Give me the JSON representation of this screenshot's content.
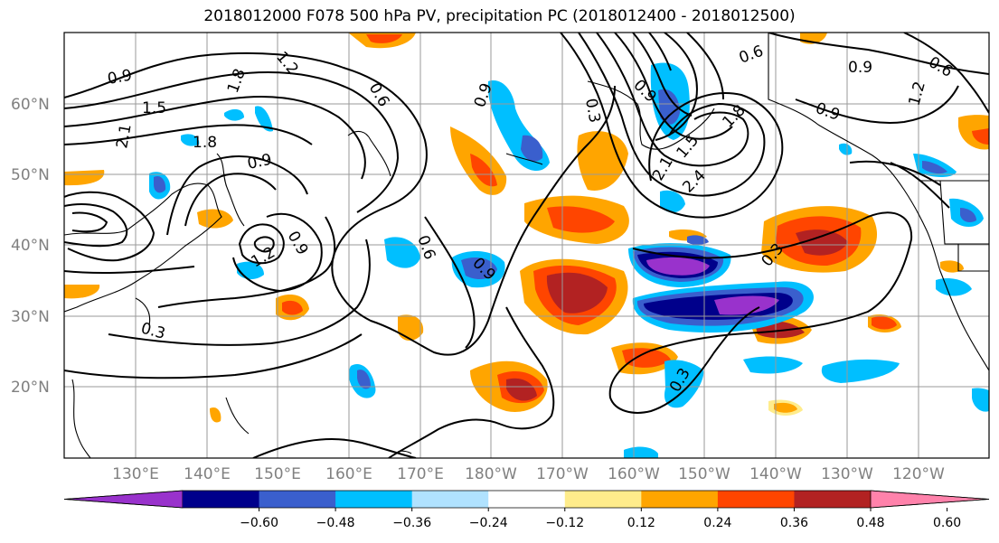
{
  "title": "2018012000 F078 500 hPa PV, precipitation PC (2018012400 - 2018012500)",
  "lat_labels": [
    "60°N",
    "50°N",
    "40°N",
    "30°N",
    "20°N"
  ],
  "lon_labels": [
    "130°E",
    "140°E",
    "150°E",
    "160°E",
    "170°E",
    "180°W",
    "170°W",
    "160°W",
    "150°W",
    "140°W",
    "130°W",
    "120°W"
  ],
  "colorbar": {
    "ticks": [
      "−0.60",
      "−0.48",
      "−0.36",
      "−0.24",
      "−0.12",
      "0.12",
      "0.24",
      "0.36",
      "0.48",
      "0.60"
    ],
    "colors": [
      "#9932CC",
      "#00008B",
      "#3A5FCD",
      "#00BFFF",
      "#B0E2FF",
      "#FFFFFF",
      "#FFEC8B",
      "#FFA500",
      "#FF4500",
      "#B22222",
      "#FF82AB"
    ]
  },
  "contour_labels": [
    "0.9",
    "1.2",
    "1.8",
    "1.5",
    "2.1",
    "1.8",
    "0.9",
    "0.9",
    "1.2",
    "0.6",
    "0.9",
    "0.3",
    "0.6",
    "0.9",
    "0.3",
    "1.8",
    "1.5",
    "2.1",
    "2.4",
    "0.9",
    "0.6",
    "0.9",
    "0.6",
    "1.2",
    "0.3",
    "0.3",
    "0.9"
  ]
}
